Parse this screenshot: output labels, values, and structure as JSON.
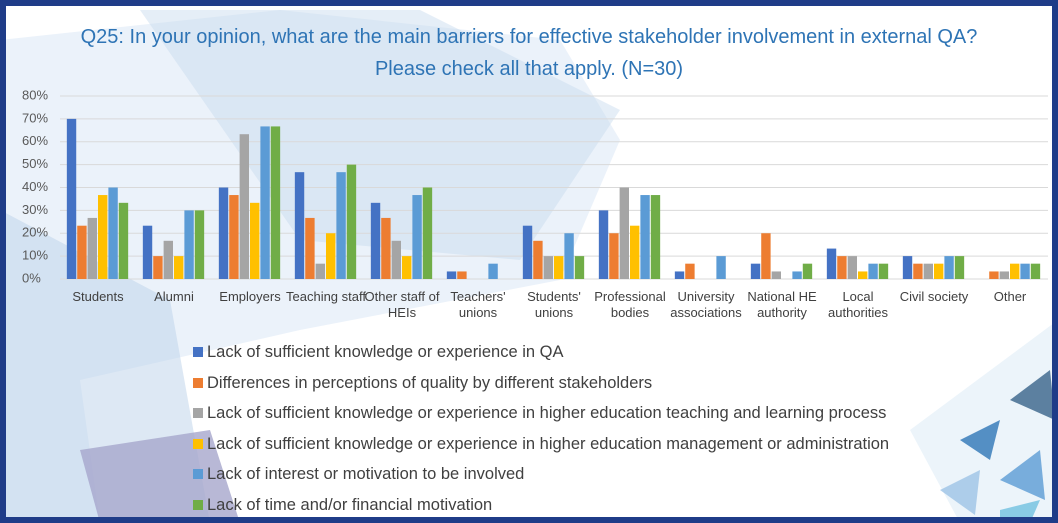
{
  "chart_data": {
    "type": "bar",
    "title": [
      "Q25: In your opinion, what are the main barriers for effective stakeholder involvement in external QA?",
      "Please check all that apply. (N=30)"
    ],
    "categories": [
      "Students",
      "Alumni",
      "Employers",
      "Teaching staff",
      "Other staff of HEIs",
      "Teachers' unions",
      "Students' unions",
      "Professional bodies",
      "University associations",
      "National HE authority",
      "Local authorities",
      "Civil society",
      "Other"
    ],
    "series": [
      {
        "name": "Lack of sufficient knowledge or experience in QA",
        "color": "#4472c4",
        "values": [
          70,
          23.3,
          40,
          46.7,
          33.3,
          3.3,
          23.3,
          30,
          3.3,
          6.7,
          13.3,
          10,
          0
        ]
      },
      {
        "name": "Differences in perceptions of quality by different stakeholders",
        "color": "#ed7d31",
        "values": [
          23.3,
          10,
          36.7,
          26.7,
          26.7,
          3.3,
          16.7,
          20,
          6.7,
          20,
          10,
          6.7,
          3.3
        ]
      },
      {
        "name": "Lack of sufficient knowledge or experience in higher education teaching and learning process",
        "color": "#a5a5a5",
        "values": [
          26.7,
          16.7,
          63.3,
          6.7,
          16.7,
          0,
          10,
          40,
          0,
          3.3,
          10,
          6.7,
          3.3
        ]
      },
      {
        "name": "Lack of sufficient knowledge or experience in higher education management or administration",
        "color": "#ffc000",
        "values": [
          36.7,
          10,
          33.3,
          20,
          10,
          0,
          10,
          23.3,
          0,
          0,
          3.3,
          6.7,
          6.7
        ]
      },
      {
        "name": "Lack of interest or motivation to be involved",
        "color": "#5b9bd5",
        "values": [
          40,
          30,
          66.7,
          46.7,
          36.7,
          6.7,
          20,
          36.7,
          10,
          3.3,
          6.7,
          10,
          6.7
        ]
      },
      {
        "name": "Lack of time and/or financial motivation",
        "color": "#70ad47",
        "values": [
          33.3,
          30,
          66.7,
          50,
          40,
          0,
          10,
          36.7,
          0,
          6.7,
          6.7,
          10,
          6.7
        ]
      }
    ],
    "ylim": [
      0,
      80
    ],
    "yticks": [
      {
        "value": 0,
        "label": "0%"
      },
      {
        "value": 10,
        "label": "10%"
      },
      {
        "value": 20,
        "label": "20%"
      },
      {
        "value": 30,
        "label": "30%"
      },
      {
        "value": 40,
        "label": "40%"
      },
      {
        "value": 50,
        "label": "50%"
      },
      {
        "value": 60,
        "label": "60%"
      },
      {
        "value": 70,
        "label": "70%"
      },
      {
        "value": 80,
        "label": "80%"
      }
    ],
    "grid": true,
    "legend": "bottom"
  }
}
